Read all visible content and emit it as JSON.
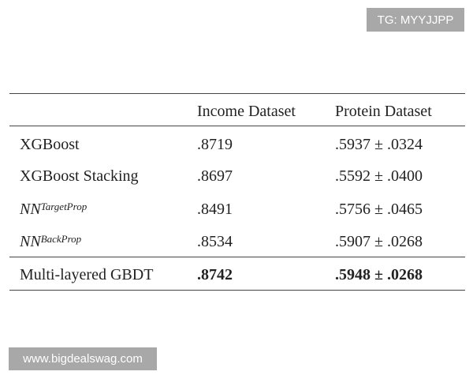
{
  "watermarks": {
    "top": "TG: MYYJJPP",
    "bottom": "www.bigdealswag.com"
  },
  "table": {
    "headers": [
      "",
      "Income Dataset",
      "Protein Dataset"
    ],
    "rows": [
      {
        "method": "XGBoost",
        "sup": "",
        "income": ".8719",
        "protein": ".5937 ± .0324",
        "bold": false
      },
      {
        "method": "XGBoost Stacking",
        "sup": "",
        "income": ".8697",
        "protein": ".5592 ± .0400",
        "bold": false
      },
      {
        "method": "NN",
        "sup": "TargetProp",
        "income": ".8491",
        "protein": ".5756 ± .0465",
        "bold": false
      },
      {
        "method": "NN",
        "sup": "BackProp",
        "income": ".8534",
        "protein": ".5907 ± .0268",
        "bold": false
      },
      {
        "method": "Multi-layered GBDT",
        "sup": "",
        "income": ".8742",
        "protein": ".5948 ± .0268",
        "bold": true
      }
    ]
  }
}
